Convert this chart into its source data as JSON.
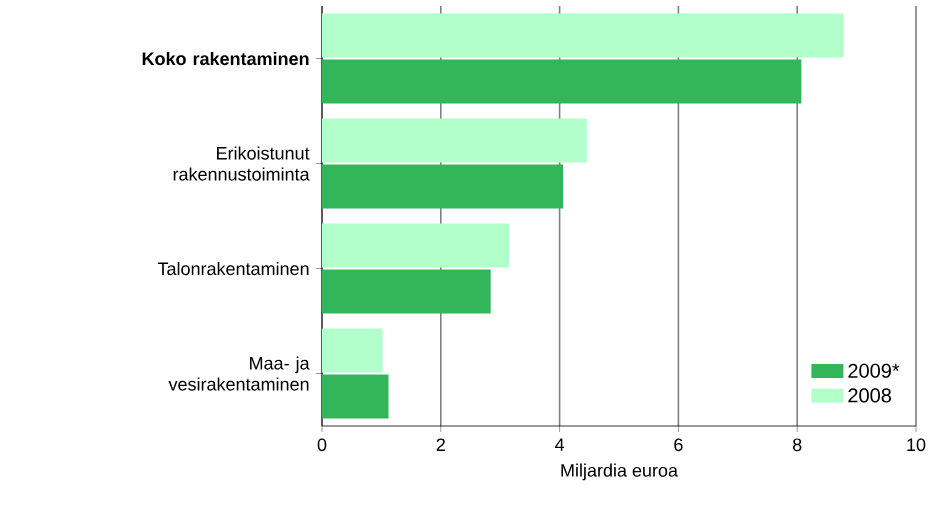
{
  "chart_data": {
    "type": "bar",
    "orientation": "horizontal",
    "xlabel": "Miljardia euroa",
    "categories": [
      "Koko rakentaminen",
      "Erikoistunut rakennustoiminta",
      "Talonrakentaminen",
      "Maa- ja vesirakentaminen"
    ],
    "series": [
      {
        "name": "2009*",
        "color": "#33b55a",
        "values": [
          8.07,
          4.06,
          2.84,
          1.12
        ]
      },
      {
        "name": "2008",
        "color": "#b3ffcc",
        "values": [
          8.78,
          4.46,
          3.15,
          1.02
        ]
      }
    ],
    "xlim": [
      0,
      10
    ],
    "xticks": [
      0,
      2,
      4,
      6,
      8,
      10
    ],
    "grid": "x",
    "legend": "bottom right"
  }
}
